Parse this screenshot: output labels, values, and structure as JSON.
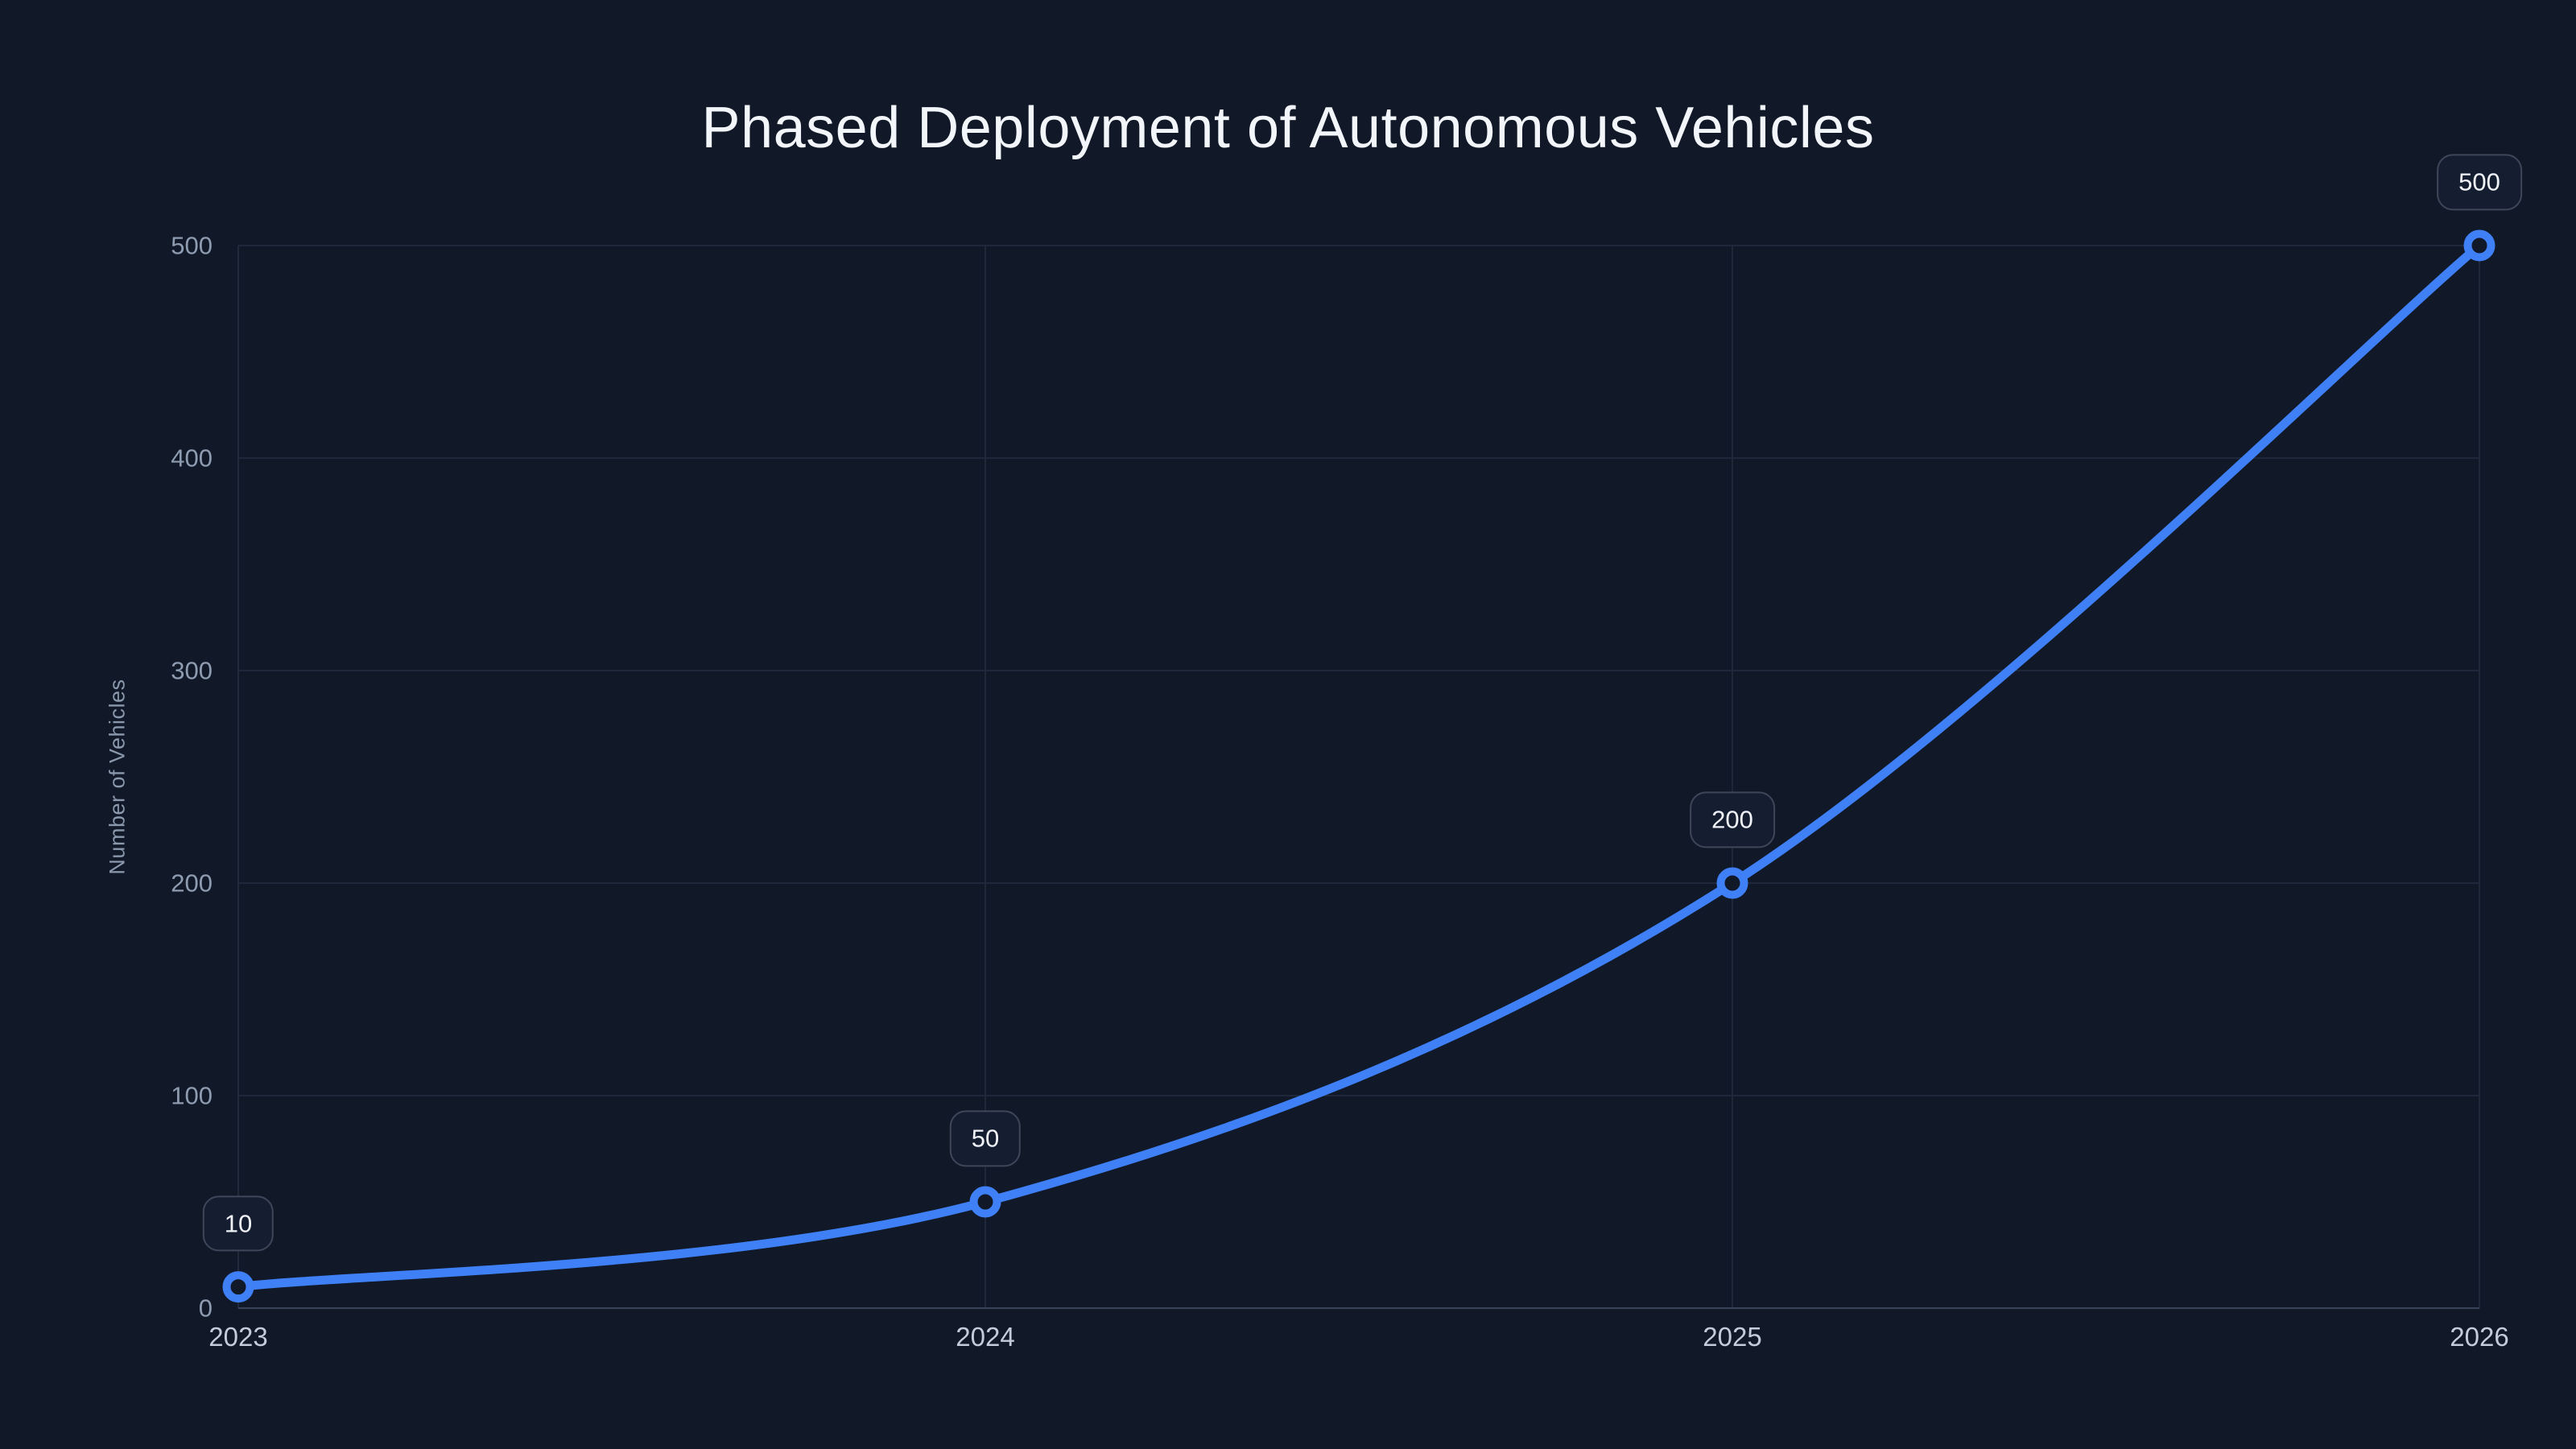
{
  "page": {
    "background": "#111827"
  },
  "chart_data": {
    "type": "line",
    "title": "Phased Deployment of Autonomous Vehicles",
    "x": [
      "2023",
      "2024",
      "2025",
      "2026"
    ],
    "series": [
      {
        "name": "Number of Vehicles",
        "values": [
          10,
          50,
          200,
          500
        ],
        "point_labels": [
          "10",
          "50",
          "200",
          "500"
        ]
      }
    ],
    "xlabel": "",
    "ylabel": "Number of Vehicles",
    "ylim": [
      0,
      500
    ],
    "yticks": [
      0,
      100,
      200,
      300,
      400,
      500
    ],
    "ytick_labels": [
      "0",
      "100",
      "200",
      "300",
      "400",
      "500"
    ],
    "grid": true,
    "legend": false,
    "line_shape": "spline",
    "marker_style": "open-circle",
    "colors": {
      "background": "#111827",
      "line": "#3f80f6",
      "marker_fill": "#111827",
      "grid": "#232d40",
      "axis_line": "#39445a",
      "title_text": "#f2f5f9",
      "x_tick_text": "#c3ccd9",
      "y_tick_text": "#8e9cb1",
      "axis_title_text": "#8a98ad",
      "badge_bg": "#151d30",
      "badge_border": "#3e4759",
      "badge_text": "#f0f3f8"
    }
  }
}
